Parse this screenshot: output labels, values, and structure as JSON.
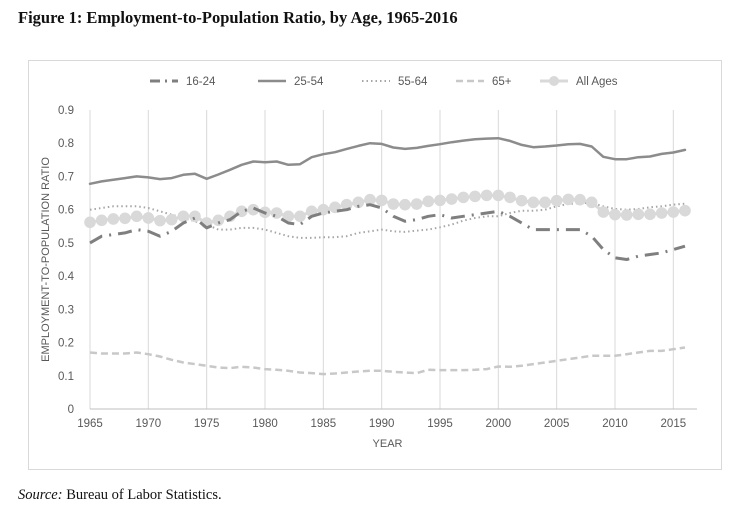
{
  "figure": {
    "title": "Figure 1:  Employment-to-Population Ratio, by Age, 1965-2016",
    "source_label": "Source:",
    "source_text": " Bureau of Labor Statistics."
  },
  "chart_data": {
    "type": "line",
    "title": "Figure 1:  Employment-to-Population Ratio, by Age, 1965-2016",
    "xlabel": "YEAR",
    "ylabel": "EMPLOYMENT-TO-POPULATION RATIO",
    "xlim": [
      1965,
      2016
    ],
    "ylim": [
      0,
      0.9
    ],
    "x_ticks": [
      "1965",
      "1970",
      "1975",
      "1980",
      "1985",
      "1990",
      "1995",
      "2000",
      "2005",
      "2010",
      "2015"
    ],
    "y_ticks": [
      "0",
      "0.1",
      "0.2",
      "0.3",
      "0.4",
      "0.5",
      "0.6",
      "0.7",
      "0.8",
      "0.9"
    ],
    "grid": "vertical",
    "legend_position": "top",
    "x_start": 1965,
    "series": [
      {
        "name": "16-24",
        "style": "dash-dot",
        "color": "#7f7f7f",
        "values": [
          0.5,
          0.52,
          0.525,
          0.53,
          0.54,
          0.535,
          0.52,
          0.535,
          0.56,
          0.575,
          0.545,
          0.56,
          0.57,
          0.595,
          0.605,
          0.59,
          0.58,
          0.56,
          0.555,
          0.58,
          0.59,
          0.595,
          0.6,
          0.61,
          0.615,
          0.605,
          0.58,
          0.565,
          0.57,
          0.58,
          0.585,
          0.575,
          0.58,
          0.585,
          0.59,
          0.595,
          0.58,
          0.56,
          0.54,
          0.54,
          0.54,
          0.54,
          0.54,
          0.52,
          0.48,
          0.455,
          0.45,
          0.46,
          0.465,
          0.47,
          0.48,
          0.49
        ]
      },
      {
        "name": "25-54",
        "style": "solid",
        "color": "#8c8c8c",
        "values": [
          0.678,
          0.685,
          0.69,
          0.695,
          0.7,
          0.697,
          0.692,
          0.695,
          0.705,
          0.708,
          0.693,
          0.706,
          0.72,
          0.735,
          0.745,
          0.743,
          0.745,
          0.735,
          0.737,
          0.758,
          0.767,
          0.773,
          0.783,
          0.792,
          0.8,
          0.798,
          0.787,
          0.783,
          0.786,
          0.792,
          0.797,
          0.803,
          0.808,
          0.812,
          0.814,
          0.815,
          0.807,
          0.795,
          0.788,
          0.79,
          0.793,
          0.797,
          0.798,
          0.79,
          0.759,
          0.752,
          0.752,
          0.758,
          0.76,
          0.768,
          0.772,
          0.78
        ]
      },
      {
        "name": "55-64",
        "style": "dotted",
        "color": "#a6a6a6",
        "values": [
          0.6,
          0.605,
          0.61,
          0.61,
          0.61,
          0.605,
          0.595,
          0.585,
          0.575,
          0.565,
          0.555,
          0.54,
          0.54,
          0.545,
          0.545,
          0.54,
          0.53,
          0.52,
          0.515,
          0.515,
          0.517,
          0.517,
          0.52,
          0.53,
          0.535,
          0.54,
          0.535,
          0.533,
          0.537,
          0.54,
          0.547,
          0.555,
          0.567,
          0.575,
          0.58,
          0.58,
          0.59,
          0.597,
          0.597,
          0.6,
          0.61,
          0.617,
          0.62,
          0.62,
          0.61,
          0.602,
          0.6,
          0.602,
          0.607,
          0.61,
          0.615,
          0.618
        ]
      },
      {
        "name": "65+",
        "style": "dashed",
        "color": "#c8c8c8",
        "values": [
          0.17,
          0.167,
          0.167,
          0.167,
          0.17,
          0.165,
          0.158,
          0.148,
          0.14,
          0.135,
          0.13,
          0.125,
          0.123,
          0.127,
          0.125,
          0.12,
          0.118,
          0.115,
          0.11,
          0.108,
          0.105,
          0.107,
          0.11,
          0.113,
          0.115,
          0.115,
          0.112,
          0.11,
          0.108,
          0.118,
          0.117,
          0.117,
          0.117,
          0.118,
          0.12,
          0.128,
          0.127,
          0.13,
          0.135,
          0.14,
          0.145,
          0.15,
          0.155,
          0.16,
          0.16,
          0.16,
          0.165,
          0.17,
          0.175,
          0.175,
          0.18,
          0.185
        ]
      },
      {
        "name": "All Ages",
        "style": "dots",
        "color": "#d9d9d9",
        "values": [
          0.562,
          0.568,
          0.572,
          0.574,
          0.58,
          0.575,
          0.567,
          0.57,
          0.58,
          0.58,
          0.56,
          0.568,
          0.58,
          0.595,
          0.6,
          0.592,
          0.59,
          0.58,
          0.58,
          0.595,
          0.6,
          0.607,
          0.615,
          0.622,
          0.63,
          0.628,
          0.617,
          0.615,
          0.617,
          0.625,
          0.628,
          0.632,
          0.637,
          0.64,
          0.643,
          0.643,
          0.637,
          0.627,
          0.622,
          0.622,
          0.627,
          0.631,
          0.63,
          0.622,
          0.593,
          0.585,
          0.584,
          0.586,
          0.586,
          0.59,
          0.593,
          0.597
        ]
      }
    ]
  }
}
